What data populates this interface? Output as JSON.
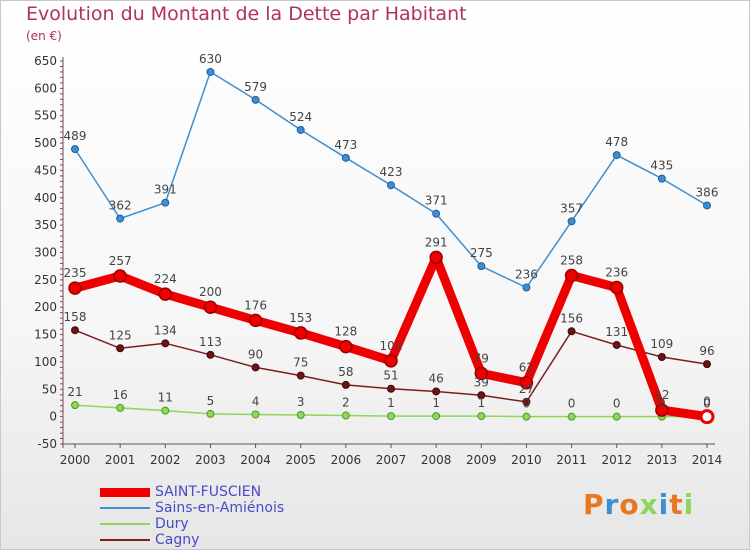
{
  "header": {
    "title": "Evolution du Montant de la Dette par Habitant",
    "unit": "(en €)"
  },
  "brand": {
    "text": "Proxiti"
  },
  "chart_data": {
    "type": "line",
    "title": "Evolution du Montant de la Dette par Habitant",
    "subtitle": "(en €)",
    "xlabel": "",
    "ylabel": "",
    "x": [
      2000,
      2001,
      2002,
      2003,
      2004,
      2005,
      2006,
      2007,
      2008,
      2009,
      2010,
      2011,
      2012,
      2013,
      2014
    ],
    "ylim": [
      -50,
      650
    ],
    "yticks": [
      -50,
      0,
      50,
      100,
      150,
      200,
      250,
      300,
      350,
      400,
      450,
      500,
      550,
      600,
      650
    ],
    "grid": false,
    "legend": "bottom-left",
    "series": [
      {
        "name": "SAINT-FUSCIEN",
        "color": "#ee0000",
        "values": [
          235,
          257,
          224,
          200,
          176,
          153,
          128,
          102,
          291,
          79,
          62,
          258,
          236,
          12,
          0
        ]
      },
      {
        "name": "Sains-en-Amiénois",
        "color": "#3d8fd1",
        "values": [
          489,
          362,
          391,
          630,
          579,
          524,
          473,
          423,
          371,
          275,
          236,
          357,
          478,
          435,
          386
        ]
      },
      {
        "name": "Dury",
        "color": "#8ed65c",
        "values": [
          21,
          16,
          11,
          5,
          4,
          3,
          2,
          1,
          1,
          1,
          0,
          0,
          0,
          0,
          0
        ]
      },
      {
        "name": "Cagny",
        "color": "#7a1f1f",
        "values": [
          158,
          125,
          134,
          113,
          90,
          75,
          58,
          51,
          46,
          39,
          27,
          156,
          131,
          109,
          96
        ]
      }
    ]
  }
}
